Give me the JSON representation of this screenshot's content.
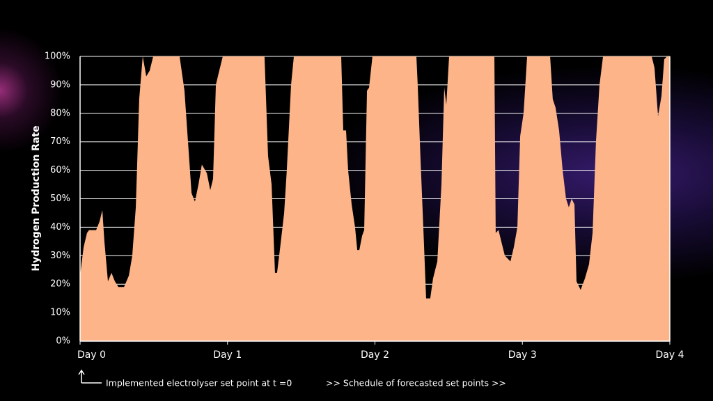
{
  "chart_data": {
    "type": "area",
    "y_label": "Hydrogen Production Rate",
    "annotations": [
      "Implemented electrolyser set point at t =0",
      ">> Schedule of forecasted set points >>"
    ],
    "color": "#fdb488",
    "grid": true,
    "xlim": [
      0,
      4
    ],
    "ylim": [
      0,
      100
    ],
    "xticks": [
      {
        "value": 0,
        "label": "Day 0"
      },
      {
        "value": 1,
        "label": "Day 1"
      },
      {
        "value": 2,
        "label": "Day 2"
      },
      {
        "value": 3,
        "label": "Day 3"
      },
      {
        "value": 4,
        "label": "Day 4"
      }
    ],
    "yticks": [
      {
        "value": 0,
        "label": "0%"
      },
      {
        "value": 10,
        "label": "10%"
      },
      {
        "value": 20,
        "label": "20%"
      },
      {
        "value": 30,
        "label": "30%"
      },
      {
        "value": 40,
        "label": "40%"
      },
      {
        "value": 50,
        "label": "50%"
      },
      {
        "value": 60,
        "label": "60%"
      },
      {
        "value": 70,
        "label": "70%"
      },
      {
        "value": 80,
        "label": "80%"
      },
      {
        "value": 90,
        "label": "90%"
      },
      {
        "value": 100,
        "label": "100%"
      }
    ],
    "x": [
      0,
      0.024,
      0.047,
      0.061,
      0.109,
      0.132,
      0.151,
      0.165,
      0.189,
      0.213,
      0.236,
      0.26,
      0.298,
      0.331,
      0.354,
      0.378,
      0.401,
      0.425,
      0.449,
      0.472,
      0.496,
      0.675,
      0.708,
      0.732,
      0.756,
      0.779,
      0.803,
      0.826,
      0.86,
      0.883,
      0.902,
      0.921,
      0.944,
      0.968,
      1.251,
      1.275,
      1.299,
      1.322,
      1.336,
      1.355,
      1.384,
      1.402,
      1.431,
      1.45,
      1.771,
      1.785,
      1.804,
      1.818,
      1.842,
      1.865,
      1.88,
      1.894,
      1.913,
      1.927,
      1.946,
      1.96,
      1.983,
      2.281,
      2.29,
      2.309,
      2.328,
      2.347,
      2.375,
      2.394,
      2.423,
      2.451,
      2.47,
      2.484,
      2.503,
      2.81,
      2.819,
      2.838,
      2.857,
      2.881,
      2.919,
      2.942,
      2.966,
      2.985,
      3.008,
      3.032,
      3.188,
      3.206,
      3.225,
      3.249,
      3.273,
      3.296,
      3.315,
      3.334,
      3.353,
      3.367,
      3.395,
      3.424,
      3.452,
      3.476,
      3.499,
      3.523,
      3.547,
      3.877,
      3.896,
      3.92,
      3.943,
      3.962,
      3.981,
      4
    ],
    "values": [
      23,
      33,
      38,
      39,
      39,
      42,
      46,
      35,
      21,
      24,
      21,
      19,
      19,
      23,
      30,
      47,
      85,
      100,
      93,
      95,
      100,
      100,
      88,
      70,
      52,
      49,
      55,
      62,
      59,
      53,
      57,
      90,
      95,
      100,
      100,
      65,
      55,
      24,
      24,
      32,
      45,
      60,
      90,
      100,
      100,
      74,
      74,
      60,
      48,
      40,
      32,
      32,
      37,
      39,
      88,
      89,
      100,
      100,
      90,
      64,
      40,
      15,
      15,
      22,
      28,
      55,
      89,
      83,
      100,
      100,
      38,
      39,
      35,
      30,
      28,
      33,
      40,
      72,
      80,
      100,
      100,
      85,
      82,
      74,
      60,
      50,
      47,
      50,
      48,
      21,
      18,
      22,
      27,
      38,
      70,
      90,
      100,
      100,
      96,
      79,
      86,
      99,
      100,
      100
    ]
  }
}
